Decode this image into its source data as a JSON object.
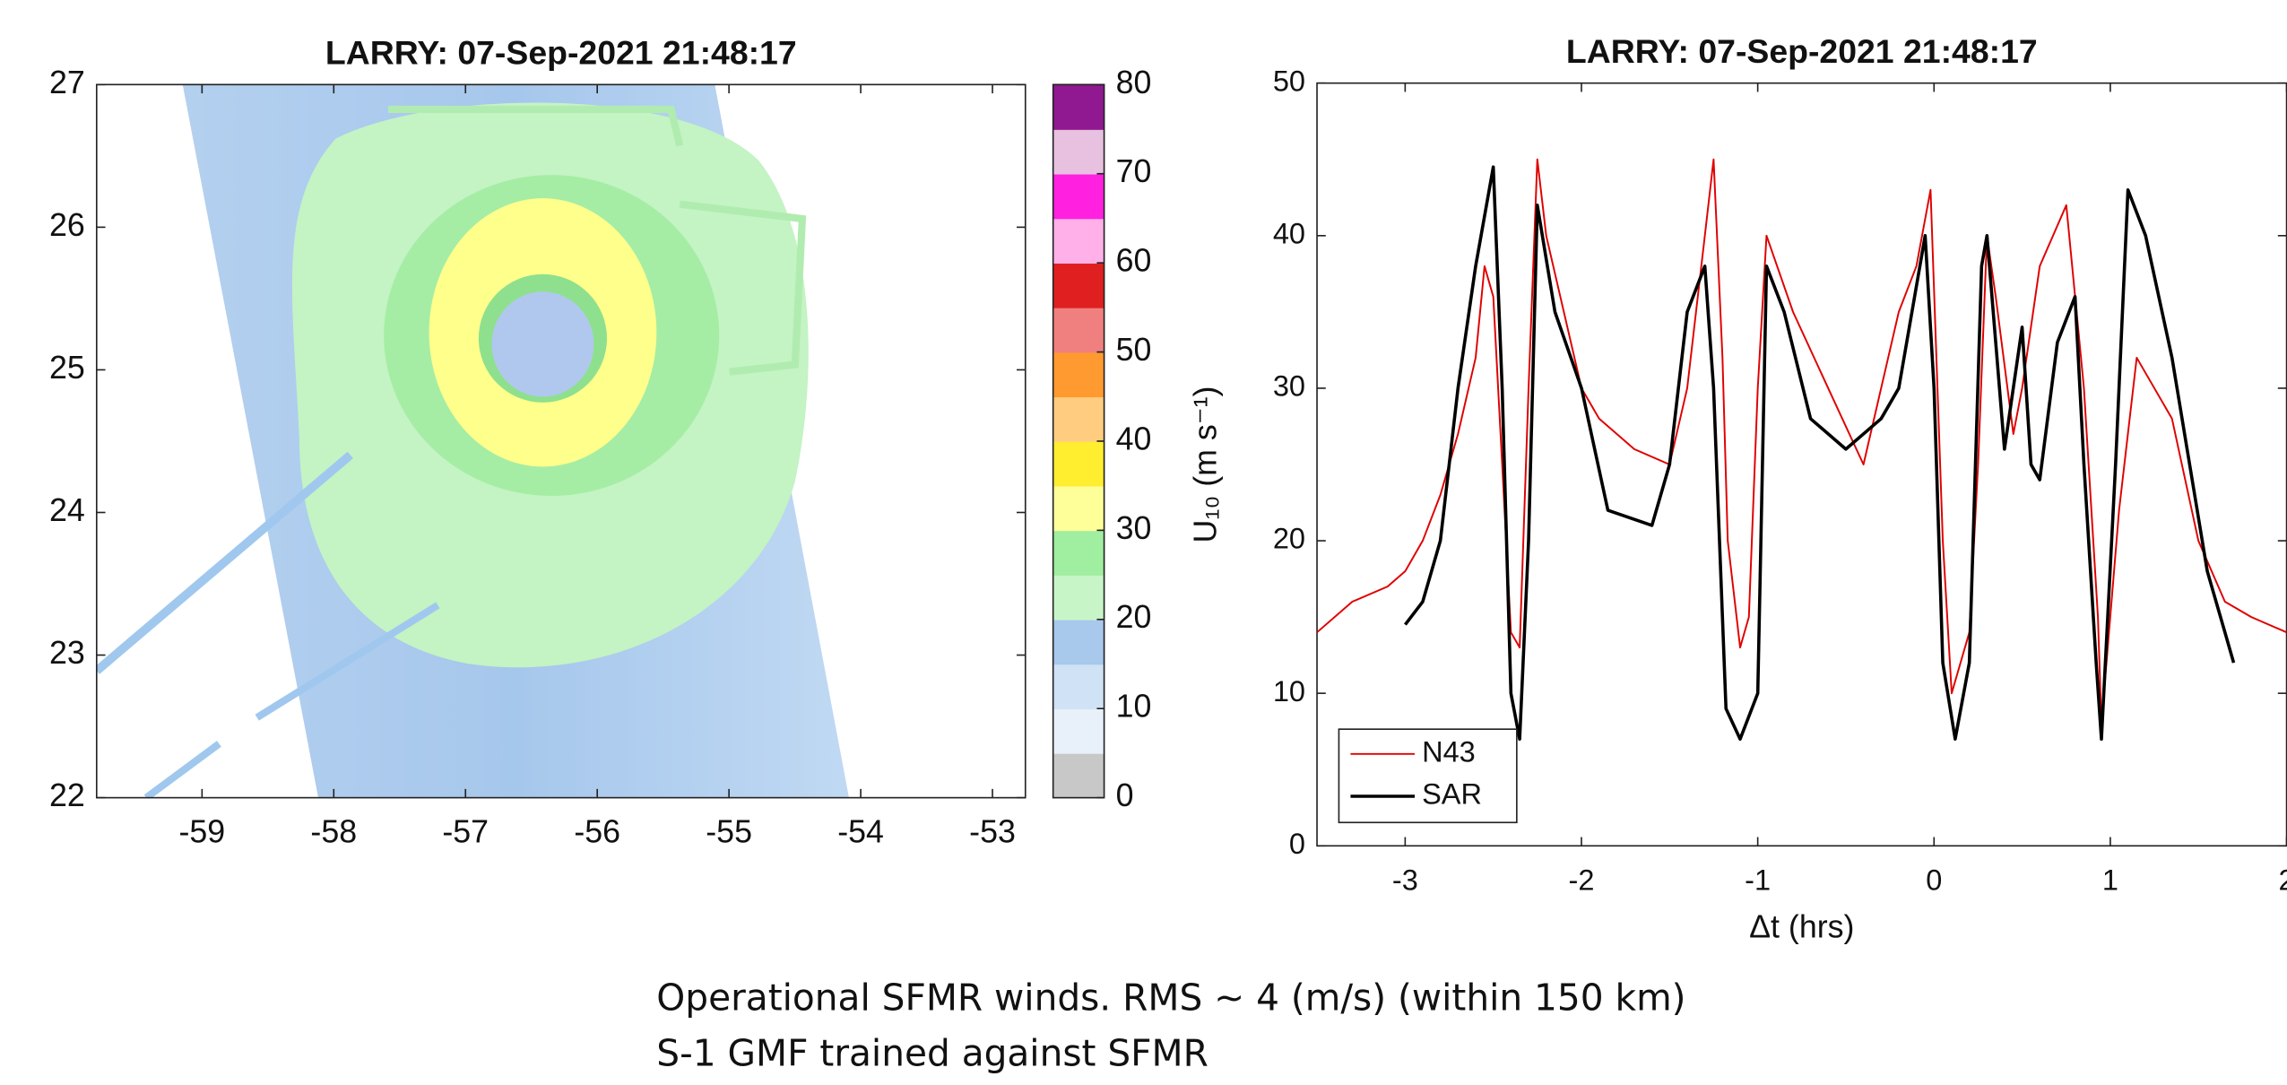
{
  "chart_data": [
    {
      "type": "map",
      "title": "LARRY: 07-Sep-2021 21:48:17",
      "xlim": [
        -59.8,
        -52.75
      ],
      "xticks": [
        -59,
        -58,
        -57,
        -56,
        -55,
        -54,
        -53
      ],
      "ylim": [
        22,
        27
      ],
      "yticks": [
        22,
        23,
        24,
        25,
        26,
        27
      ],
      "colorbar": {
        "lim": [
          0,
          80
        ],
        "ticks": [
          0,
          10,
          20,
          30,
          40,
          50,
          60,
          70,
          80
        ],
        "colors": [
          "#c8c8c8",
          "#e8f0fa",
          "#d0e2f5",
          "#a8c8ec",
          "#c8f5c8",
          "#a0eea0",
          "#ffff9a",
          "#ffee30",
          "#ffcc80",
          "#ff9a30",
          "#f08080",
          "#e02020",
          "#ffb0e8",
          "#ff20e0",
          "#e8c0e0",
          "#901890"
        ]
      }
    },
    {
      "type": "line",
      "title": "LARRY: 07-Sep-2021 21:48:17",
      "xlabel": "Δt (hrs)",
      "ylabel": "U₁₀ (m s⁻¹)",
      "xlim": [
        -3.5,
        2
      ],
      "xticks": [
        -3,
        -2,
        -1,
        0,
        1,
        2
      ],
      "ylim": [
        0,
        50
      ],
      "yticks": [
        0,
        10,
        20,
        30,
        40,
        50
      ],
      "legend": "lower-left",
      "series": [
        {
          "name": "N43",
          "color": "#e00000",
          "width": 1.2,
          "x": [
            -3.5,
            -3.3,
            -3.1,
            -3.0,
            -2.9,
            -2.8,
            -2.7,
            -2.6,
            -2.55,
            -2.5,
            -2.45,
            -2.4,
            -2.35,
            -2.3,
            -2.25,
            -2.2,
            -2.1,
            -2.0,
            -1.9,
            -1.7,
            -1.5,
            -1.4,
            -1.3,
            -1.25,
            -1.2,
            -1.17,
            -1.1,
            -1.05,
            -1.0,
            -0.95,
            -0.8,
            -0.6,
            -0.4,
            -0.2,
            -0.1,
            -0.02,
            0.05,
            0.1,
            0.2,
            0.25,
            0.3,
            0.35,
            0.45,
            0.5,
            0.6,
            0.75,
            0.85,
            0.93,
            0.95,
            1.05,
            1.15,
            1.35,
            1.5,
            1.65,
            1.8,
            2.0
          ],
          "values": [
            14,
            16,
            17,
            18,
            20,
            23,
            27,
            32,
            38,
            36,
            25,
            14,
            13,
            30,
            45,
            40,
            35,
            30,
            28,
            26,
            25,
            30,
            40,
            45,
            32,
            20,
            13,
            15,
            30,
            40,
            35,
            30,
            25,
            35,
            38,
            43,
            20,
            10,
            14,
            25,
            40,
            36,
            27,
            30,
            38,
            42,
            30,
            15,
            8,
            22,
            32,
            28,
            20,
            16,
            15,
            14
          ]
        },
        {
          "name": "SAR",
          "color": "#000000",
          "width": 2.2,
          "x": [
            -3.0,
            -2.9,
            -2.8,
            -2.7,
            -2.6,
            -2.5,
            -2.45,
            -2.4,
            -2.35,
            -2.3,
            -2.25,
            -2.15,
            -2.0,
            -1.85,
            -1.6,
            -1.5,
            -1.4,
            -1.3,
            -1.25,
            -1.18,
            -1.1,
            -1.0,
            -0.95,
            -0.85,
            -0.7,
            -0.5,
            -0.3,
            -0.2,
            -0.05,
            0.0,
            0.05,
            0.12,
            0.2,
            0.27,
            0.3,
            0.4,
            0.5,
            0.55,
            0.6,
            0.7,
            0.8,
            0.85,
            0.92,
            0.95,
            1.03,
            1.1,
            1.2,
            1.35,
            1.45,
            1.55,
            1.65,
            1.7
          ],
          "values": [
            14.5,
            16,
            20,
            30,
            38,
            44.5,
            30,
            10,
            7,
            20,
            42,
            35,
            30,
            22,
            21,
            25,
            35,
            38,
            30,
            9,
            7,
            10,
            38,
            35,
            28,
            26,
            28,
            30,
            40,
            30,
            12,
            7,
            12,
            38,
            40,
            26,
            34,
            25,
            24,
            33,
            36,
            25,
            12,
            7,
            25,
            43,
            40,
            32,
            25,
            18,
            14,
            12
          ]
        }
      ]
    }
  ],
  "caption": [
    "Operational SFMR winds. RMS ~ 4 (m/s) (within 150 km)",
    "S-1 GMF trained against SFMR"
  ]
}
